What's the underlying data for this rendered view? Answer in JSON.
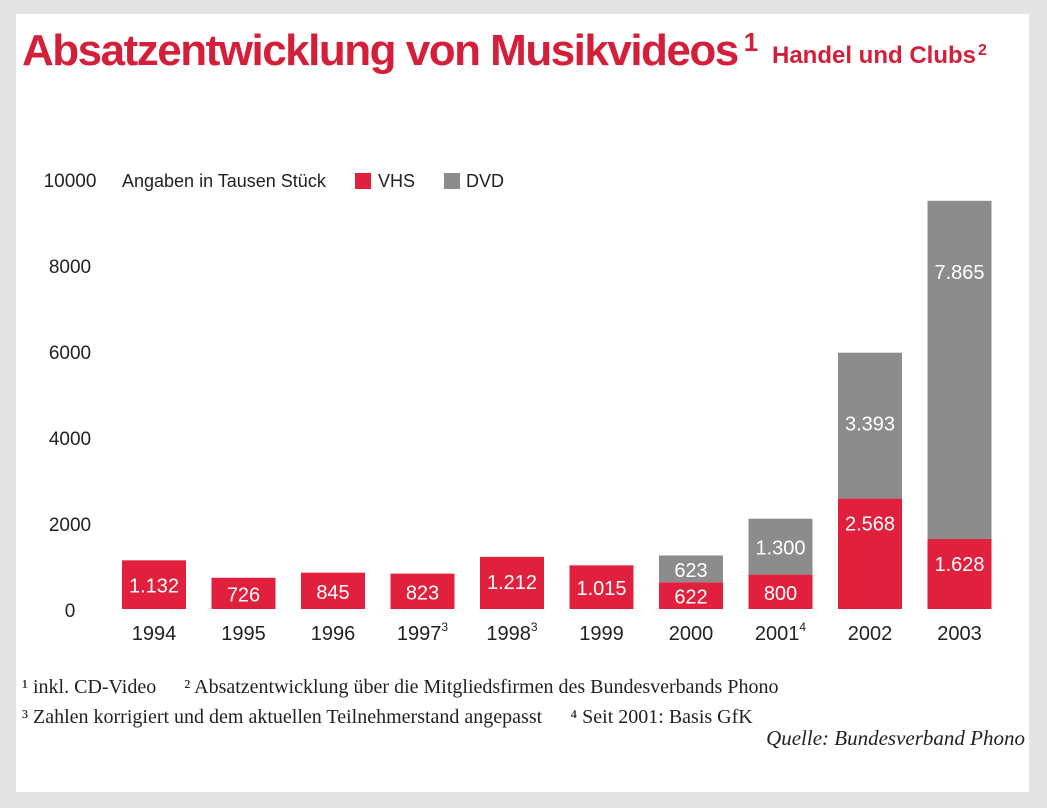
{
  "title": "Absatzentwicklung von Musikvideos",
  "title_mark": "1",
  "subtitle": "Handel und Clubs",
  "subtitle_mark": "2",
  "footnotes": {
    "n1": "¹ inkl. CD-Video",
    "n2": "² Absatzentwicklung über die Mitgliedsfirmen des Bundesverbands Phono",
    "n3": "³ Zahlen korrigiert und dem aktuellen Teilnehmerstand angepasst",
    "n4": "⁴ Seit 2001: Basis GfK"
  },
  "source": "Quelle: Bundesverband Phono",
  "colors": {
    "vhs": "#e0203c",
    "dvd": "#8c8c8c",
    "accent": "#d31f3a"
  },
  "chart_data": {
    "type": "bar",
    "stacked": true,
    "unit_label": "Angaben in Tausen Stück",
    "categories": [
      "1994",
      "1995",
      "1996",
      "1997",
      "1998",
      "1999",
      "2000",
      "2001",
      "2002",
      "2003"
    ],
    "category_marks": [
      "",
      "",
      "",
      "3",
      "3",
      "",
      "",
      "4",
      "",
      ""
    ],
    "series": [
      {
        "name": "VHS",
        "values": [
          1132,
          726,
          845,
          823,
          1212,
          1015,
          622,
          800,
          2568,
          1628
        ],
        "labels": [
          "1.132",
          "726",
          "845",
          "823",
          "1.212",
          "1.015",
          "622",
          "800",
          "2.568",
          "1.628"
        ]
      },
      {
        "name": "DVD",
        "values": [
          0,
          0,
          0,
          0,
          0,
          0,
          623,
          1300,
          3393,
          7865
        ],
        "labels": [
          "",
          "",
          "",
          "",
          "",
          "",
          "623",
          "1.300",
          "3.393",
          "7.865"
        ]
      }
    ],
    "yticks": [
      0,
      2000,
      4000,
      6000,
      8000,
      10000
    ],
    "ylim": [
      0,
      10000
    ],
    "grid": false,
    "legend_position": "top-left"
  }
}
